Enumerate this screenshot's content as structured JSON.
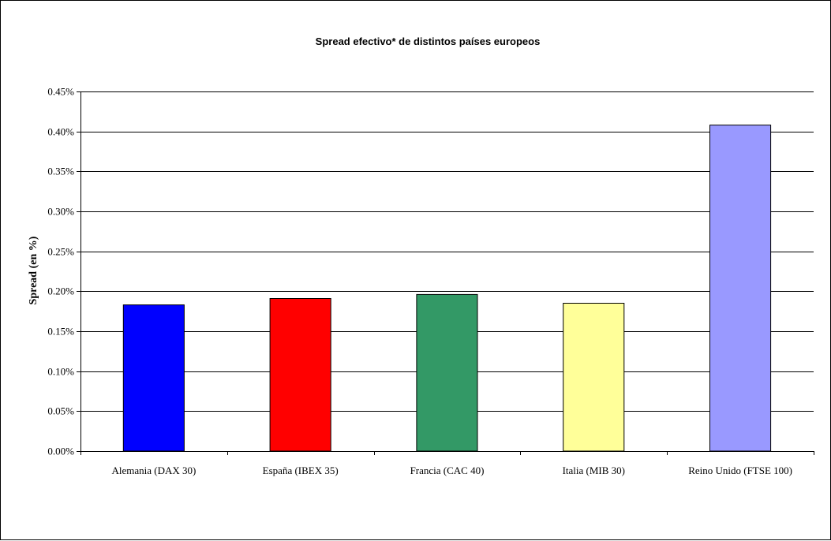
{
  "chart_data": {
    "type": "bar",
    "title": "Spread efectivo* de distintos países europeos",
    "xlabel": "",
    "ylabel": "Spread (en %)",
    "categories": [
      "Alemania (DAX 30)",
      "España (IBEX 35)",
      "Francia (CAC 40)",
      "Italia (MIB 30)",
      "Reino Unido (FTSE 100)"
    ],
    "values": [
      0.00183,
      0.00191,
      0.00196,
      0.00185,
      0.00408
    ],
    "bar_colors": [
      "#0000FF",
      "#FF0000",
      "#339966",
      "#FFFF99",
      "#9999FF"
    ],
    "ylim": [
      0,
      0.0045
    ],
    "yticks": [
      0,
      0.0005,
      0.001,
      0.0015,
      0.002,
      0.0025,
      0.003,
      0.0035,
      0.004,
      0.0045
    ],
    "ytick_labels": [
      "0.00%",
      "0.05%",
      "0.10%",
      "0.15%",
      "0.20%",
      "0.25%",
      "0.30%",
      "0.35%",
      "0.40%",
      "0.45%"
    ],
    "grid": true,
    "legend": "none"
  }
}
